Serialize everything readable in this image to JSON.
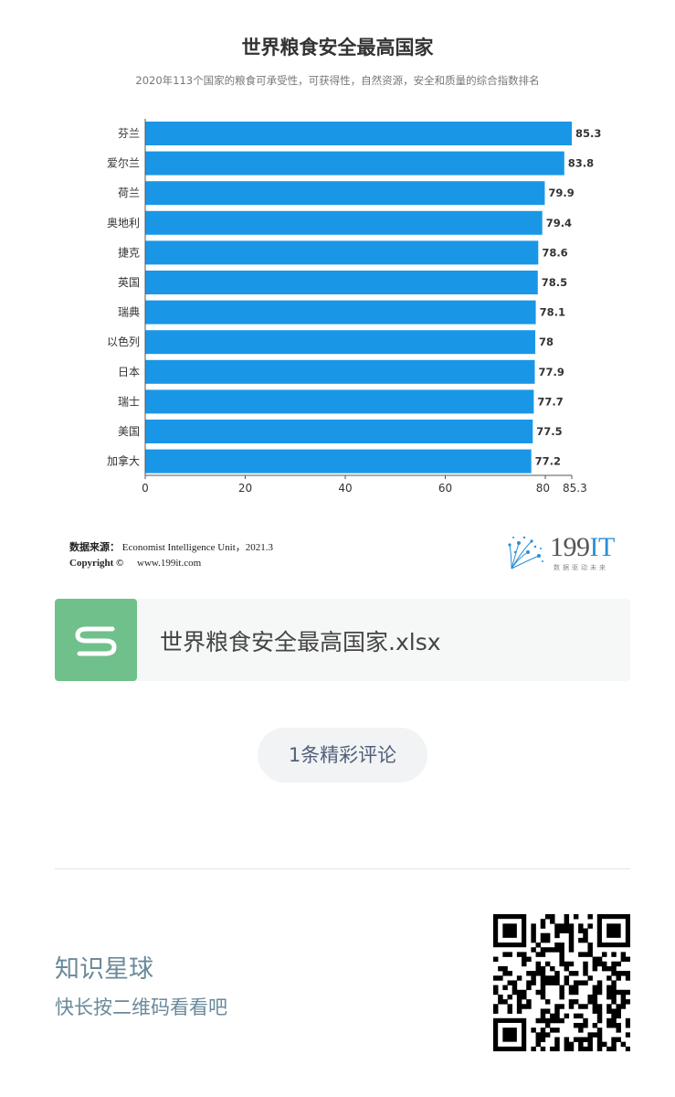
{
  "chart_data": {
    "type": "bar",
    "orientation": "horizontal",
    "title": "世界粮食安全最高国家",
    "subtitle": "2020年113个国家的粮食可承受性，可获得性，自然资源，安全和质量的综合指数排名",
    "categories": [
      "芬兰",
      "爱尔兰",
      "荷兰",
      "奥地利",
      "捷克",
      "英国",
      "瑞典",
      "以色列",
      "日本",
      "瑞士",
      "美国",
      "加拿大"
    ],
    "values": [
      85.3,
      83.8,
      79.9,
      79.4,
      78.6,
      78.5,
      78.1,
      78,
      77.9,
      77.7,
      77.5,
      77.2
    ],
    "value_labels": [
      "85.3",
      "83.8",
      "79.9",
      "79.4",
      "78.6",
      "78.5",
      "78.1",
      "78",
      "77.9",
      "77.7",
      "77.5",
      "77.2"
    ],
    "xticks": [
      "0",
      "20",
      "40",
      "60",
      "80",
      "85.3"
    ],
    "xtick_values": [
      0,
      20,
      40,
      60,
      80,
      85.3
    ],
    "xlim": [
      0,
      85.3
    ],
    "bar_color": "#1a96e6",
    "grid": false,
    "legend": "none"
  },
  "source": {
    "label": "数据来源：",
    "text": "Economist Intelligence Unit，2021.3",
    "copyright_label": "Copyright ©",
    "website": "www.199it.com"
  },
  "logo": {
    "text_num": "199",
    "text_it": "IT",
    "tagline": "数据驱动未来",
    "accent": "#2a8fd6"
  },
  "file_card": {
    "icon": "spreadsheet-s-icon",
    "icon_color": "#6fc08a",
    "filename": "世界粮食安全最高国家.xlsx"
  },
  "comments": {
    "label": "1条精彩评论"
  },
  "footer": {
    "title": "知识星球",
    "subtitle": "快长按二维码看看吧",
    "qr_icon": "qr-code-icon"
  }
}
